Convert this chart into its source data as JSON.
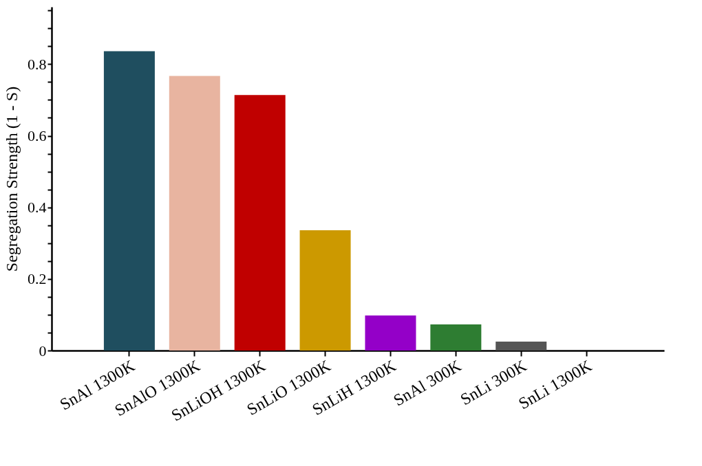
{
  "chart_data": {
    "type": "bar",
    "ylabel": "Segregation Strength (1 - S)",
    "categories": [
      "SnAl 1300K",
      "SnAlO 1300K",
      "SnLiOH 1300K",
      "SnLiO 1300K",
      "SnLiH 1300K",
      "SnAl 300K",
      "SnLi 300K",
      "SnLi 1300K"
    ],
    "values": [
      0.836,
      0.767,
      0.714,
      0.336,
      0.098,
      0.073,
      0.025,
      0
    ],
    "colors": [
      "#1f4e5f",
      "#e8b4a0",
      "#c00000",
      "#cc9900",
      "#9400c8",
      "#2e7d32",
      "#555555",
      "#333333"
    ],
    "ylim": [
      0,
      0.96
    ],
    "yticks": [
      0,
      {
        "value": 0.05,
        "label": null
      },
      {
        "value": 0.1,
        "label": null
      },
      {
        "value": 0.15,
        "label": null
      },
      0.2,
      {
        "value": 0.25,
        "label": null
      },
      {
        "value": 0.3,
        "label": null
      },
      {
        "value": 0.35,
        "label": null
      },
      0.4,
      {
        "value": 0.45,
        "label": null
      },
      {
        "value": 0.5,
        "label": null
      },
      {
        "value": 0.55,
        "label": null
      },
      0.6,
      {
        "value": 0.65,
        "label": null
      },
      {
        "value": 0.7,
        "label": null
      },
      {
        "value": 0.75,
        "label": null
      },
      0.8,
      {
        "value": 0.85,
        "label": null
      },
      {
        "value": 0.9,
        "label": null
      },
      {
        "value": 0.95,
        "label": null
      }
    ],
    "grid": false
  }
}
